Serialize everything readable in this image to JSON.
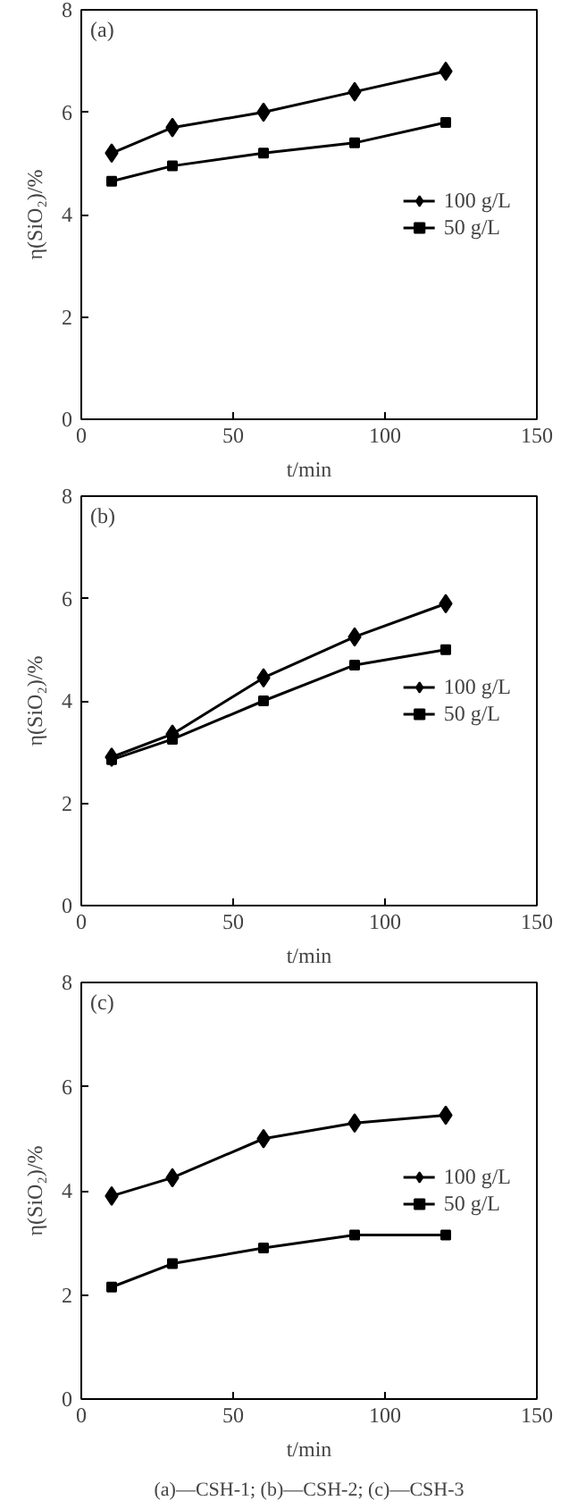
{
  "chart_data": [
    {
      "type": "line",
      "title": "(a)",
      "xlabel": "t/min",
      "ylabel": "η(SiO₂)/%",
      "x": [
        10,
        30,
        60,
        90,
        120
      ],
      "xlim": [
        0,
        150
      ],
      "ylim": [
        0,
        8
      ],
      "xticks": [
        0,
        50,
        100,
        150
      ],
      "yticks": [
        0,
        2,
        4,
        6,
        8
      ],
      "grid": false,
      "legend": "right",
      "line_style": "solid",
      "series": [
        {
          "name": "100 g/L",
          "color": "#000000",
          "marker": "diamond",
          "values": [
            5.2,
            5.7,
            6.0,
            6.4,
            6.8
          ]
        },
        {
          "name": "50 g/L",
          "color": "#000000",
          "marker": "square",
          "values": [
            4.65,
            4.95,
            5.2,
            5.4,
            5.8
          ]
        }
      ]
    },
    {
      "type": "line",
      "title": "(b)",
      "xlabel": "t/min",
      "ylabel": "η(SiO₂)/%",
      "x": [
        10,
        30,
        60,
        90,
        120
      ],
      "xlim": [
        0,
        150
      ],
      "ylim": [
        0,
        8
      ],
      "xticks": [
        0,
        50,
        100,
        150
      ],
      "yticks": [
        0,
        2,
        4,
        6,
        8
      ],
      "grid": false,
      "legend": "right",
      "line_style": "solid",
      "series": [
        {
          "name": "100 g/L",
          "color": "#000000",
          "marker": "diamond",
          "values": [
            2.9,
            3.35,
            4.45,
            5.25,
            5.9
          ]
        },
        {
          "name": "50 g/L",
          "color": "#000000",
          "marker": "square",
          "values": [
            2.85,
            3.25,
            4.0,
            4.7,
            5.0
          ]
        }
      ]
    },
    {
      "type": "line",
      "title": "(c)",
      "xlabel": "t/min",
      "ylabel": "η(SiO₂)/%",
      "x": [
        10,
        30,
        60,
        90,
        120
      ],
      "xlim": [
        0,
        150
      ],
      "ylim": [
        0,
        8
      ],
      "xticks": [
        0,
        50,
        100,
        150
      ],
      "yticks": [
        0,
        2,
        4,
        6,
        8
      ],
      "grid": false,
      "legend": "right",
      "line_style": "solid",
      "annotations": [
        "(a)—CSH-1; (b)—CSH-2; (c)—CSH-3"
      ],
      "series": [
        {
          "name": "100 g/L",
          "color": "#000000",
          "marker": "diamond",
          "values": [
            3.9,
            4.25,
            5.0,
            5.3,
            5.45
          ]
        },
        {
          "name": "50 g/L",
          "color": "#000000",
          "marker": "square",
          "values": [
            2.15,
            2.6,
            2.9,
            3.15,
            3.15
          ]
        }
      ]
    }
  ]
}
